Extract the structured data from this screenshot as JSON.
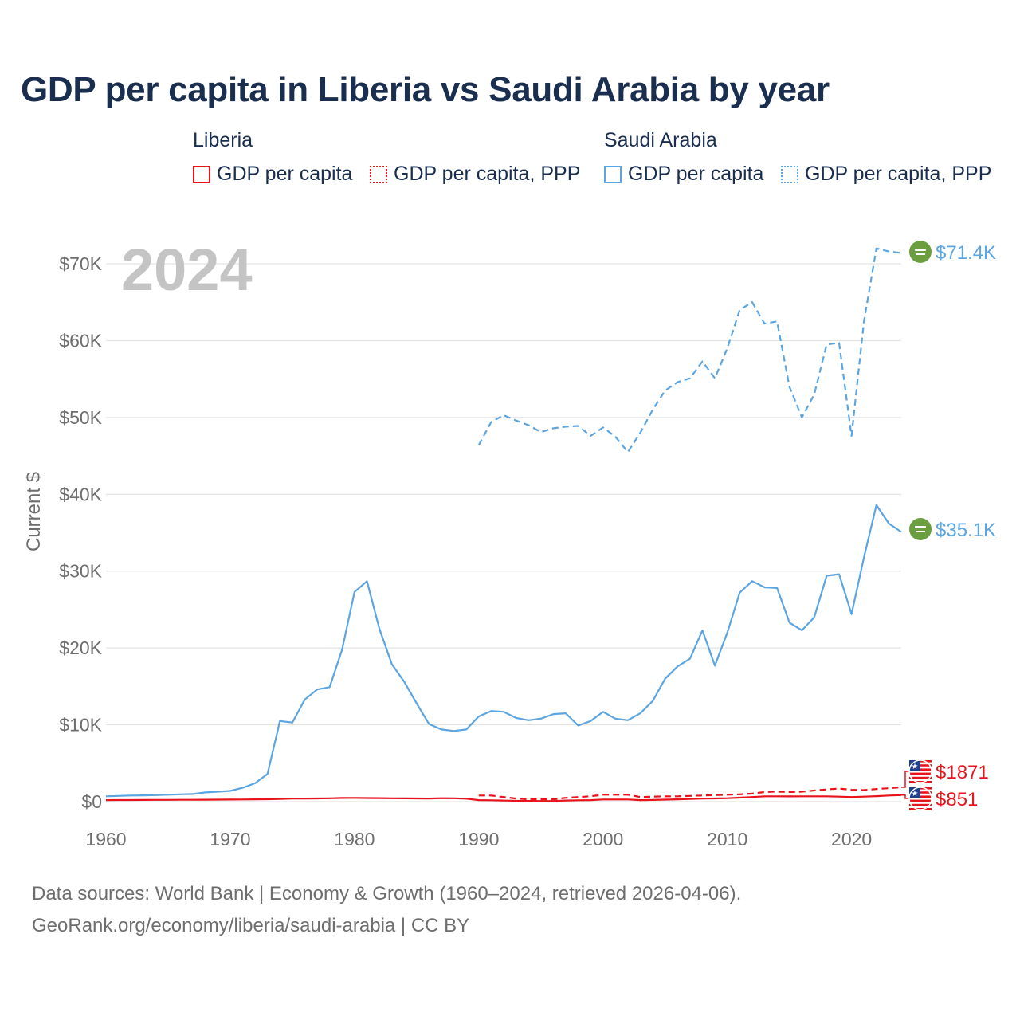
{
  "title": "GDP per capita in Liberia vs Saudi Arabia by year",
  "year_display": "2024",
  "legend": {
    "liberia": {
      "name": "Liberia",
      "items": [
        "GDP per capita",
        "GDP per capita, PPP"
      ]
    },
    "saudi": {
      "name": "Saudi Arabia",
      "items": [
        "GDP per capita",
        "GDP per capita, PPP"
      ]
    }
  },
  "colors": {
    "liberia": "#e8141c",
    "saudi": "#5ca5e0",
    "flag_saudi": "#6a9e3f"
  },
  "footer": {
    "line1": "Data sources: World Bank | Economy & Growth (1960–2024, retrieved 2026-04-06).",
    "line2": "GeoRank.org/economy/liberia/saudi-arabia | CC BY"
  },
  "chart_data": {
    "type": "line",
    "title": "GDP per capita in Liberia vs Saudi Arabia by year",
    "ylabel": "Current $",
    "xlabel": "",
    "xlim": [
      1960,
      2024
    ],
    "ylim": [
      0,
      72000
    ],
    "xticks": [
      1960,
      1970,
      1980,
      1990,
      2000,
      2010,
      2020
    ],
    "yticks": [
      {
        "value": 0,
        "label": "$0"
      },
      {
        "value": 10000,
        "label": "$10K"
      },
      {
        "value": 20000,
        "label": "$20K"
      },
      {
        "value": 30000,
        "label": "$30K"
      },
      {
        "value": 40000,
        "label": "$40K"
      },
      {
        "value": 50000,
        "label": "$50K"
      },
      {
        "value": 60000,
        "label": "$60K"
      },
      {
        "value": 70000,
        "label": "$70K"
      }
    ],
    "series": [
      {
        "name": "Saudi Arabia GDP per capita, PPP",
        "country": "saudi",
        "style": "dashed",
        "end_label": "$71.4K",
        "points": [
          [
            1990,
            46400
          ],
          [
            1991,
            49400
          ],
          [
            1992,
            50300
          ],
          [
            1993,
            49600
          ],
          [
            1994,
            49000
          ],
          [
            1995,
            48100
          ],
          [
            1996,
            48600
          ],
          [
            1997,
            48800
          ],
          [
            1998,
            48900
          ],
          [
            1999,
            47600
          ],
          [
            2000,
            48700
          ],
          [
            2001,
            47500
          ],
          [
            2002,
            45500
          ],
          [
            2003,
            48000
          ],
          [
            2004,
            51000
          ],
          [
            2005,
            53500
          ],
          [
            2006,
            54600
          ],
          [
            2007,
            55100
          ],
          [
            2008,
            57300
          ],
          [
            2009,
            55100
          ],
          [
            2010,
            59000
          ],
          [
            2011,
            64000
          ],
          [
            2012,
            65000
          ],
          [
            2013,
            62200
          ],
          [
            2014,
            62500
          ],
          [
            2015,
            54000
          ],
          [
            2016,
            50000
          ],
          [
            2017,
            53000
          ],
          [
            2018,
            59500
          ],
          [
            2019,
            59700
          ],
          [
            2020,
            47600
          ],
          [
            2021,
            62500
          ],
          [
            2022,
            72000
          ],
          [
            2023,
            71600
          ],
          [
            2024,
            71400
          ]
        ]
      },
      {
        "name": "Saudi Arabia GDP per capita",
        "country": "saudi",
        "style": "solid",
        "end_label": "$35.1K",
        "points": [
          [
            1960,
            700
          ],
          [
            1961,
            750
          ],
          [
            1962,
            800
          ],
          [
            1963,
            820
          ],
          [
            1964,
            850
          ],
          [
            1965,
            900
          ],
          [
            1966,
            950
          ],
          [
            1967,
            1000
          ],
          [
            1968,
            1200
          ],
          [
            1969,
            1300
          ],
          [
            1970,
            1400
          ],
          [
            1971,
            1800
          ],
          [
            1972,
            2400
          ],
          [
            1973,
            3600
          ],
          [
            1974,
            10500
          ],
          [
            1975,
            10300
          ],
          [
            1976,
            13300
          ],
          [
            1977,
            14600
          ],
          [
            1978,
            14900
          ],
          [
            1979,
            19800
          ],
          [
            1980,
            27300
          ],
          [
            1981,
            28700
          ],
          [
            1982,
            22500
          ],
          [
            1983,
            17900
          ],
          [
            1984,
            15600
          ],
          [
            1985,
            12800
          ],
          [
            1986,
            10100
          ],
          [
            1987,
            9400
          ],
          [
            1988,
            9200
          ],
          [
            1989,
            9400
          ],
          [
            1990,
            11100
          ],
          [
            1991,
            11800
          ],
          [
            1992,
            11700
          ],
          [
            1993,
            10900
          ],
          [
            1994,
            10600
          ],
          [
            1995,
            10800
          ],
          [
            1996,
            11400
          ],
          [
            1997,
            11500
          ],
          [
            1998,
            9900
          ],
          [
            1999,
            10500
          ],
          [
            2000,
            11700
          ],
          [
            2001,
            10800
          ],
          [
            2002,
            10600
          ],
          [
            2003,
            11500
          ],
          [
            2004,
            13100
          ],
          [
            2005,
            16000
          ],
          [
            2006,
            17600
          ],
          [
            2007,
            18600
          ],
          [
            2008,
            22300
          ],
          [
            2009,
            17700
          ],
          [
            2010,
            22000
          ],
          [
            2011,
            27200
          ],
          [
            2012,
            28700
          ],
          [
            2013,
            27900
          ],
          [
            2014,
            27800
          ],
          [
            2015,
            23300
          ],
          [
            2016,
            22300
          ],
          [
            2017,
            24000
          ],
          [
            2018,
            29400
          ],
          [
            2019,
            29600
          ],
          [
            2020,
            24400
          ],
          [
            2021,
            31800
          ],
          [
            2022,
            38600
          ],
          [
            2023,
            36200
          ],
          [
            2024,
            35100
          ]
        ]
      },
      {
        "name": "Liberia GDP per capita, PPP",
        "country": "liberia",
        "style": "dashed",
        "end_label": "$1871",
        "points": [
          [
            1990,
            800
          ],
          [
            1991,
            800
          ],
          [
            1992,
            600
          ],
          [
            1993,
            400
          ],
          [
            1994,
            300
          ],
          [
            1995,
            300
          ],
          [
            1996,
            300
          ],
          [
            1997,
            500
          ],
          [
            1998,
            600
          ],
          [
            1999,
            700
          ],
          [
            2000,
            900
          ],
          [
            2001,
            900
          ],
          [
            2002,
            900
          ],
          [
            2003,
            600
          ],
          [
            2004,
            650
          ],
          [
            2005,
            700
          ],
          [
            2006,
            700
          ],
          [
            2007,
            750
          ],
          [
            2008,
            800
          ],
          [
            2009,
            850
          ],
          [
            2010,
            900
          ],
          [
            2011,
            950
          ],
          [
            2012,
            1050
          ],
          [
            2013,
            1250
          ],
          [
            2014,
            1300
          ],
          [
            2015,
            1250
          ],
          [
            2016,
            1300
          ],
          [
            2017,
            1450
          ],
          [
            2018,
            1600
          ],
          [
            2019,
            1700
          ],
          [
            2020,
            1550
          ],
          [
            2021,
            1500
          ],
          [
            2022,
            1650
          ],
          [
            2023,
            1750
          ],
          [
            2024,
            1871
          ]
        ]
      },
      {
        "name": "Liberia GDP per capita",
        "country": "liberia",
        "style": "solid",
        "end_label": "$851",
        "points": [
          [
            1960,
            200
          ],
          [
            1961,
            210
          ],
          [
            1962,
            210
          ],
          [
            1963,
            220
          ],
          [
            1964,
            230
          ],
          [
            1965,
            230
          ],
          [
            1966,
            240
          ],
          [
            1967,
            240
          ],
          [
            1968,
            250
          ],
          [
            1969,
            260
          ],
          [
            1970,
            270
          ],
          [
            1971,
            280
          ],
          [
            1972,
            300
          ],
          [
            1973,
            310
          ],
          [
            1974,
            350
          ],
          [
            1975,
            400
          ],
          [
            1976,
            400
          ],
          [
            1977,
            420
          ],
          [
            1978,
            440
          ],
          [
            1979,
            480
          ],
          [
            1980,
            490
          ],
          [
            1981,
            470
          ],
          [
            1982,
            460
          ],
          [
            1983,
            440
          ],
          [
            1984,
            430
          ],
          [
            1985,
            420
          ],
          [
            1986,
            400
          ],
          [
            1987,
            450
          ],
          [
            1988,
            440
          ],
          [
            1989,
            380
          ],
          [
            1990,
            200
          ],
          [
            1991,
            180
          ],
          [
            1992,
            150
          ],
          [
            1993,
            100
          ],
          [
            1994,
            90
          ],
          [
            1995,
            80
          ],
          [
            1996,
            80
          ],
          [
            1997,
            150
          ],
          [
            1998,
            180
          ],
          [
            1999,
            200
          ],
          [
            2000,
            280
          ],
          [
            2001,
            280
          ],
          [
            2002,
            280
          ],
          [
            2003,
            200
          ],
          [
            2004,
            220
          ],
          [
            2005,
            260
          ],
          [
            2006,
            300
          ],
          [
            2007,
            340
          ],
          [
            2008,
            400
          ],
          [
            2009,
            420
          ],
          [
            2010,
            450
          ],
          [
            2011,
            520
          ],
          [
            2012,
            600
          ],
          [
            2013,
            700
          ],
          [
            2014,
            700
          ],
          [
            2015,
            680
          ],
          [
            2016,
            700
          ],
          [
            2017,
            700
          ],
          [
            2018,
            700
          ],
          [
            2019,
            650
          ],
          [
            2020,
            600
          ],
          [
            2021,
            650
          ],
          [
            2022,
            720
          ],
          [
            2023,
            800
          ],
          [
            2024,
            851
          ]
        ]
      }
    ]
  }
}
